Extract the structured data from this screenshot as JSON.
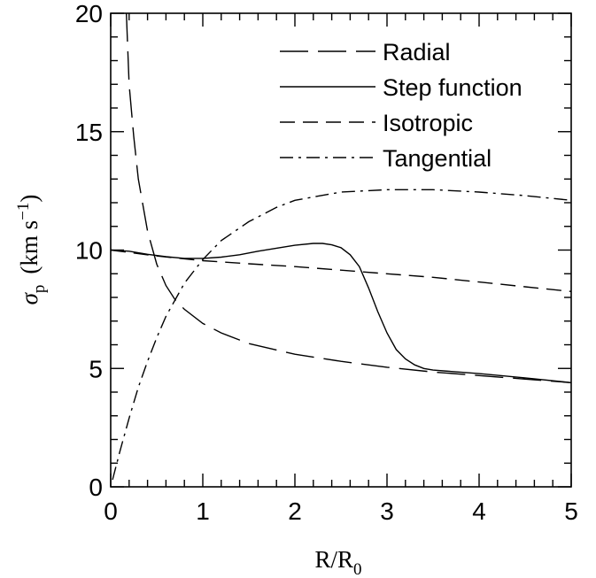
{
  "chart_data": {
    "type": "line",
    "xlabel": "R/R",
    "xlabel_sub": "0",
    "ylabel_symbol": "σ",
    "ylabel_sub": "p",
    "ylabel_unit_open": "(km s",
    "ylabel_unit_sup": "−1",
    "ylabel_unit_close": ")",
    "xlim": [
      0,
      5
    ],
    "ylim": [
      0,
      20
    ],
    "x_ticks": [
      0,
      1,
      2,
      3,
      4,
      5
    ],
    "x_tick_labels": [
      "0",
      "1",
      "2",
      "3",
      "4",
      "5"
    ],
    "y_ticks": [
      0,
      5,
      10,
      15,
      20
    ],
    "y_tick_labels": [
      "0",
      "5",
      "10",
      "15",
      "20"
    ],
    "x_minor_step": 0.2,
    "y_minor_step": 1,
    "grid": false,
    "legend_position": "top-right",
    "series": [
      {
        "name": "Radial",
        "dash": "long-dash",
        "x": [
          0.17,
          0.2,
          0.25,
          0.3,
          0.35,
          0.4,
          0.5,
          0.6,
          0.7,
          0.8,
          1.0,
          1.2,
          1.5,
          2.0,
          2.5,
          3.0,
          3.5,
          4.0,
          4.5,
          5.0
        ],
        "y": [
          20,
          17.0,
          14.8,
          13.0,
          11.9,
          10.8,
          9.4,
          8.5,
          7.9,
          7.5,
          6.9,
          6.5,
          6.05,
          5.6,
          5.3,
          5.05,
          4.85,
          4.7,
          4.55,
          4.4
        ]
      },
      {
        "name": "Step function",
        "dash": "solid",
        "x": [
          0,
          0.2,
          0.4,
          0.6,
          0.8,
          1.0,
          1.2,
          1.4,
          1.6,
          1.8,
          2.0,
          2.2,
          2.3,
          2.4,
          2.5,
          2.6,
          2.7,
          2.8,
          2.9,
          3.0,
          3.1,
          3.2,
          3.3,
          3.4,
          3.5,
          3.7,
          4.0,
          4.5,
          5.0
        ],
        "y": [
          10.0,
          9.95,
          9.82,
          9.72,
          9.65,
          9.65,
          9.7,
          9.8,
          9.95,
          10.08,
          10.2,
          10.28,
          10.28,
          10.22,
          10.1,
          9.8,
          9.3,
          8.4,
          7.4,
          6.5,
          5.8,
          5.4,
          5.15,
          5.0,
          4.93,
          4.87,
          4.78,
          4.6,
          4.4
        ]
      },
      {
        "name": "Isotropic",
        "dash": "short-dash",
        "x": [
          0,
          0.5,
          1.0,
          1.5,
          2.0,
          2.5,
          3.0,
          3.5,
          4.0,
          4.5,
          5.0
        ],
        "y": [
          10.0,
          9.75,
          9.55,
          9.42,
          9.3,
          9.15,
          9.0,
          8.85,
          8.65,
          8.45,
          8.25
        ]
      },
      {
        "name": "Tangential",
        "dash": "dash-dot",
        "x": [
          0.02,
          0.1,
          0.2,
          0.3,
          0.4,
          0.5,
          0.6,
          0.8,
          1.0,
          1.2,
          1.5,
          1.8,
          2.0,
          2.5,
          3.0,
          3.5,
          4.0,
          4.5,
          5.0
        ],
        "y": [
          0.3,
          1.5,
          2.9,
          4.2,
          5.3,
          6.3,
          7.2,
          8.6,
          9.6,
          10.4,
          11.2,
          11.8,
          12.1,
          12.45,
          12.55,
          12.55,
          12.45,
          12.3,
          12.1
        ]
      }
    ]
  }
}
